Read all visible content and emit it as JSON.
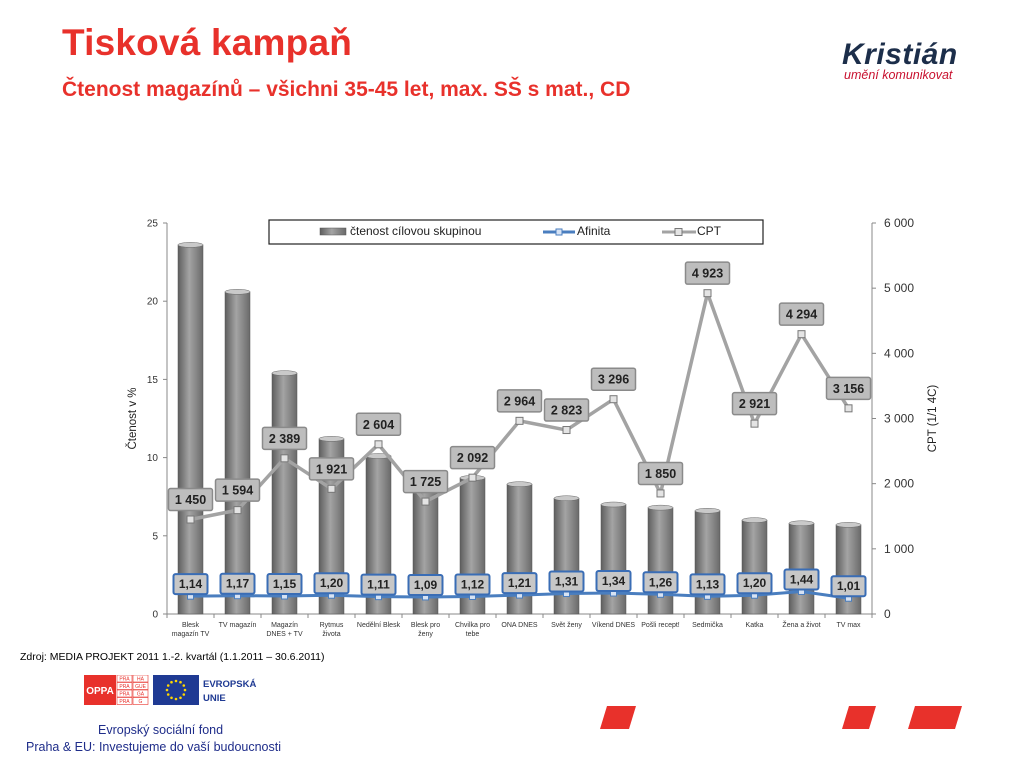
{
  "page": {
    "title": "Tisková kampaň",
    "subtitle": "Čtenost magazínů – všichni 35-45 let, max. SŠ s mat., CD",
    "source": "Zdroj: MEDIA PROJEKT  2011 1.-2. kvartál (1.1.2011 – 30.6.2011)",
    "footer_line1": "Evropský sociální fond",
    "footer_line2": "Praha & EU: Investujeme do vaší budoucnosti",
    "accent_color": "#e8312b"
  },
  "logo": {
    "name": "Kristián",
    "tagline": "umění komunikovat"
  },
  "partner_logos": {
    "opp_text": "OPPA",
    "praha_cells": [
      "PRA",
      "HA",
      "PRA",
      "GUE",
      "PRA",
      "GA",
      "PRA",
      "G"
    ],
    "eu_text_1": "EVROPSKÁ",
    "eu_text_2": "UNIE"
  },
  "chart_data": {
    "type": "bar",
    "categories": [
      [
        "Blesk",
        "magazín TV"
      ],
      [
        "TV magazín"
      ],
      [
        "Magazín",
        "DNES + TV"
      ],
      [
        "Rytmus",
        "života"
      ],
      [
        "Nedělní Blesk"
      ],
      [
        "Blesk pro",
        "ženy"
      ],
      [
        "Chvilka pro",
        "tebe"
      ],
      [
        "ONA DNES"
      ],
      [
        "Svět ženy"
      ],
      [
        "Víkend DNES"
      ],
      [
        "Pošli recept!"
      ],
      [
        "Sedmička"
      ],
      [
        "Katka"
      ],
      [
        "Žena a život"
      ],
      [
        "TV max"
      ]
    ],
    "series": [
      {
        "name": "čtenost cílovou skupinou",
        "kind": "bar",
        "axis": "left",
        "color": "#8c8c8c",
        "values": [
          23.6,
          20.6,
          15.4,
          11.2,
          10.1,
          9.0,
          8.7,
          8.3,
          7.4,
          7.0,
          6.8,
          6.6,
          6.0,
          5.8,
          5.7
        ]
      },
      {
        "name": "Afinita",
        "kind": "line",
        "axis": "left",
        "color": "#4a7ebf",
        "values": [
          1.14,
          1.17,
          1.15,
          1.2,
          1.11,
          1.09,
          1.12,
          1.21,
          1.31,
          1.34,
          1.26,
          1.13,
          1.2,
          1.44,
          1.01
        ],
        "labels": [
          "1,14",
          "1,17",
          "1,15",
          "1,20",
          "1,11",
          "1,09",
          "1,12",
          "1,21",
          "1,31",
          "1,34",
          "1,26",
          "1,13",
          "1,20",
          "1,44",
          "1,01"
        ]
      },
      {
        "name": "CPT",
        "kind": "line",
        "axis": "right",
        "color": "#a6a6a6",
        "values": [
          1450,
          1594,
          2389,
          1921,
          2604,
          1725,
          2092,
          2964,
          2823,
          3296,
          1850,
          4923,
          2921,
          4294,
          3156
        ],
        "labels": [
          "1 450",
          "1 594",
          "2 389",
          "1 921",
          "2 604",
          "1 725",
          "2 092",
          "2 964",
          "2 823",
          "3 296",
          "1 850",
          "4 923",
          "2 921",
          "4 294",
          "3 156"
        ]
      }
    ],
    "ylabel": "Čtenost v %",
    "y2label": "CPT (1/1 4C)",
    "ylim": [
      0,
      25
    ],
    "yticks": [
      "0",
      "5",
      "10",
      "15",
      "20",
      "25"
    ],
    "y2lim": [
      0,
      6000
    ],
    "y2ticks": [
      "0",
      "1 000",
      "2 000",
      "3 000",
      "4 000",
      "5 000",
      "6 000"
    ],
    "legend_position": "top-center",
    "grid": false
  }
}
